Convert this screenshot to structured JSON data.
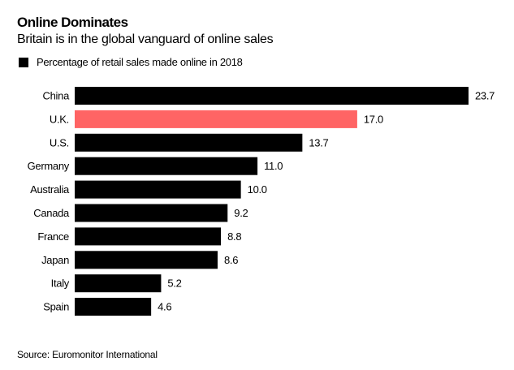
{
  "chart_data": {
    "type": "bar",
    "orientation": "horizontal",
    "title": "Online Dominates",
    "subtitle": "Britain is in the global vanguard of online sales",
    "legend": "Percentage of retail sales made online in 2018",
    "legend_placement": "top-left",
    "categories": [
      "China",
      "U.K.",
      "U.S.",
      "Germany",
      "Australia",
      "Canada",
      "France",
      "Japan",
      "Italy",
      "Spain"
    ],
    "values": [
      23.7,
      17.0,
      13.7,
      11.0,
      10.0,
      9.2,
      8.8,
      8.6,
      5.2,
      4.6
    ],
    "value_labels": [
      "23.7",
      "17.0",
      "13.7",
      "11.0",
      "10.0",
      "9.2",
      "8.8",
      "8.6",
      "5.2",
      "4.6"
    ],
    "highlight_category": "U.K.",
    "colors": {
      "default": "#000000",
      "highlight": "#ff6464"
    },
    "xlim": [
      0,
      23.7
    ],
    "grid": false,
    "source": "Source: Euromonitor International"
  }
}
